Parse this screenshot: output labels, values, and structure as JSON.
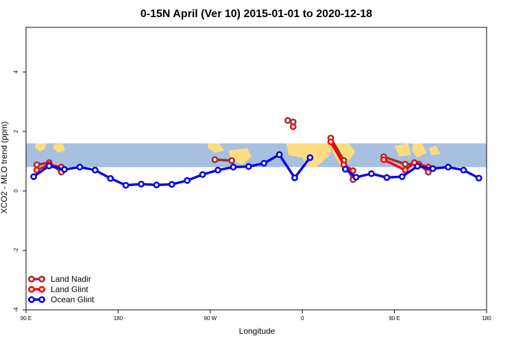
{
  "chart_data": {
    "type": "line",
    "title": "0-15N April (Ver 10)   2015-01-01 to 2020-12-18",
    "xlabel": "Longitude",
    "ylabel": "XCO2 - MLO trend (ppm)",
    "xlim": [
      -90,
      210
    ],
    "ylim": [
      -4,
      5.5
    ],
    "x_ticks": [
      {
        "value": -90,
        "label": "90 E"
      },
      {
        "value": -30,
        "label": "180"
      },
      {
        "value": 30,
        "label": "90 W"
      },
      {
        "value": 90,
        "label": "0"
      },
      {
        "value": 150,
        "label": "90 E"
      },
      {
        "value": 210,
        "label": "180"
      }
    ],
    "y_ticks": [
      {
        "value": -4,
        "label": "-4"
      },
      {
        "value": -2,
        "label": "-2"
      },
      {
        "value": 0,
        "label": "0"
      },
      {
        "value": 2,
        "label": "2"
      },
      {
        "value": 4,
        "label": "4"
      }
    ],
    "grid": false,
    "legend_position": "bottom-left",
    "background_band": {
      "y_range": [
        0.8,
        1.6
      ],
      "ocean_color": "#a7bfe0",
      "land_color": "#fddc80"
    },
    "series": [
      {
        "name": "Land Nadir",
        "color": "#a52a2a",
        "segments": [
          [
            [
              -83.0,
              0.88
            ],
            [
              -75.0,
              0.95
            ],
            [
              -67.0,
              0.63
            ]
          ],
          [
            [
              33.0,
              1.05
            ],
            [
              44.0,
              1.02
            ]
          ],
          [
            [
              80.5,
              2.37
            ],
            [
              84.0,
              2.32
            ]
          ],
          [
            [
              108.5,
              1.78
            ],
            [
              117.0,
              1.02
            ],
            [
              123.0,
              0.38
            ]
          ],
          [
            [
              143.0,
              1.15
            ],
            [
              157.0,
              0.9
            ],
            [
              166.0,
              0.9
            ],
            [
              172.0,
              0.63
            ]
          ]
        ]
      },
      {
        "name": "Land Glint",
        "color": "#ff0000",
        "segments": [
          [
            [
              -83.0,
              0.7
            ],
            [
              -75.0,
              0.88
            ],
            [
              -67.0,
              0.8
            ]
          ],
          [
            [
              84.0,
              2.16
            ]
          ],
          [
            [
              108.5,
              1.65
            ],
            [
              117.0,
              0.88
            ],
            [
              123.0,
              0.68
            ]
          ],
          [
            [
              143.0,
              1.05
            ],
            [
              157.0,
              0.7
            ],
            [
              163.0,
              0.95
            ],
            [
              172.0,
              0.8
            ]
          ]
        ]
      },
      {
        "name": "Ocean Glint",
        "color": "#0000ee",
        "segments": [
          [
            [
              -85.0,
              0.48
            ],
            [
              -75.0,
              0.84
            ],
            [
              -65.0,
              0.72
            ],
            [
              -55.0,
              0.8
            ],
            [
              -45.0,
              0.7
            ],
            [
              -35.0,
              0.42
            ],
            [
              -25.0,
              0.19
            ],
            [
              -15.0,
              0.23
            ],
            [
              -5.0,
              0.2
            ],
            [
              5.0,
              0.22
            ],
            [
              15.0,
              0.35
            ],
            [
              25.0,
              0.55
            ],
            [
              35.0,
              0.7
            ],
            [
              45.0,
              0.8
            ],
            [
              55.0,
              0.82
            ],
            [
              65.0,
              0.93
            ],
            [
              75.0,
              1.22
            ],
            [
              85.0,
              0.44
            ],
            [
              95.0,
              1.12
            ]
          ],
          [
            [
              118.0,
              0.73
            ],
            [
              125.0,
              0.46
            ],
            [
              135.0,
              0.58
            ],
            [
              145.0,
              0.45
            ],
            [
              155.0,
              0.48
            ],
            [
              165.0,
              0.83
            ],
            [
              175.0,
              0.75
            ],
            [
              185.0,
              0.8
            ],
            [
              195.0,
              0.7
            ],
            [
              205.0,
              0.43
            ]
          ]
        ]
      }
    ]
  }
}
